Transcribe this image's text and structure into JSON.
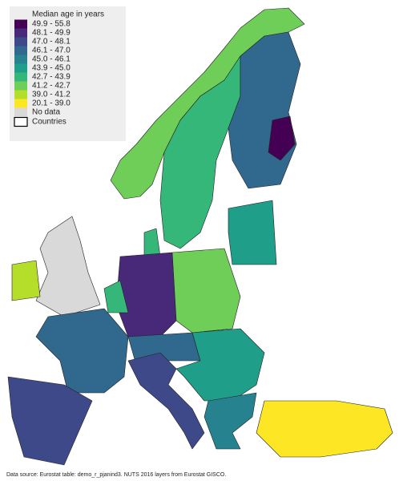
{
  "legend": {
    "title": "Median age in years",
    "items": [
      {
        "label": "49.9 - 55.8",
        "color": "#440154"
      },
      {
        "label": "48.1 - 49.9",
        "color": "#482878"
      },
      {
        "label": "47.0 - 48.1",
        "color": "#3e4989"
      },
      {
        "label": "46.1 - 47.0",
        "color": "#31688e"
      },
      {
        "label": "45.0 - 46.1",
        "color": "#26828e"
      },
      {
        "label": "43.9 - 45.0",
        "color": "#1f9e89"
      },
      {
        "label": "42.7 - 43.9",
        "color": "#35b779"
      },
      {
        "label": "41.2 - 42.7",
        "color": "#6ece58"
      },
      {
        "label": "39.0 - 41.2",
        "color": "#b5de2b"
      },
      {
        "label": "20.1 - 39.0",
        "color": "#fde725"
      }
    ],
    "no_data": {
      "label": "No data",
      "color": "#d9d9d9"
    },
    "countries": {
      "label": "Countries"
    }
  },
  "source": "Data source: Eurostat table: demo_r_pjanind3. NUTS 2016 layers from Eurostat GISCO."
}
